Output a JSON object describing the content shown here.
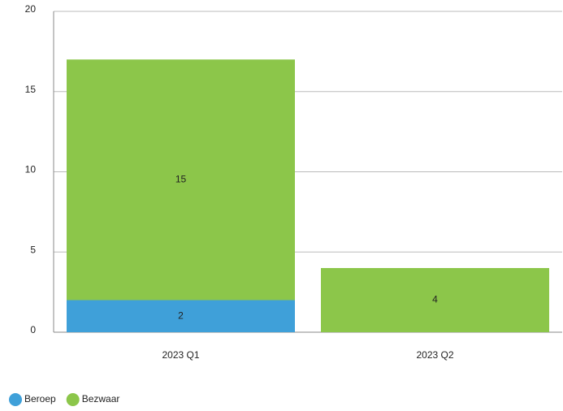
{
  "chart_data": {
    "type": "stacked_bar",
    "categories": [
      "2023 Q1",
      "2023 Q2"
    ],
    "series": [
      {
        "name": "Beroep",
        "color": "#3fa0d9",
        "values": [
          2,
          null
        ]
      },
      {
        "name": "Bezwaar",
        "color": "#8cc64a",
        "values": [
          15,
          4
        ]
      }
    ],
    "ylim": [
      0,
      20
    ],
    "yticks": [
      0,
      5,
      10,
      15,
      20
    ],
    "grid": true,
    "legend": "bottom-left"
  }
}
